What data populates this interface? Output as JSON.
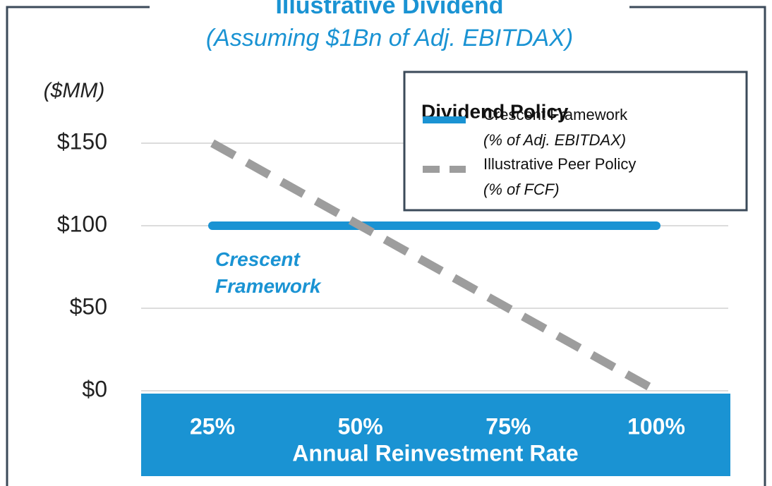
{
  "chart_data": {
    "type": "line",
    "title": "Illustrative Dividend",
    "subtitle": "(Assuming $1Bn of Adj. EBITDAX)",
    "y_label": "($MM)",
    "x_label": "Annual Reinvestment Rate",
    "annotation": "Crescent Framework",
    "x": [
      25,
      50,
      75,
      100
    ],
    "xlim": [
      25,
      100
    ],
    "xticks": [
      {
        "value": 25,
        "label": "25%"
      },
      {
        "value": 50,
        "label": "50%"
      },
      {
        "value": 75,
        "label": "75%"
      },
      {
        "value": 100,
        "label": "100%"
      }
    ],
    "ylim": [
      0,
      150
    ],
    "yticks": [
      {
        "value": 0,
        "label": "$0"
      },
      {
        "value": 50,
        "label": "$50"
      },
      {
        "value": 100,
        "label": "$100"
      },
      {
        "value": 150,
        "label": "$150"
      }
    ],
    "grid": true,
    "legend_title": "Dividend Policy",
    "legend_position": "top-right",
    "series": [
      {
        "name": "Crescent Framework",
        "note": "(% of Adj. EBITDAX)",
        "color": "#1a93d3",
        "dashed": false,
        "values": [
          100,
          100,
          100,
          100
        ]
      },
      {
        "name": "Illustrative Peer Policy",
        "note": "(% of FCF)",
        "color": "#9d9d9d",
        "dashed": true,
        "values": [
          150,
          100,
          50,
          0
        ]
      }
    ]
  }
}
